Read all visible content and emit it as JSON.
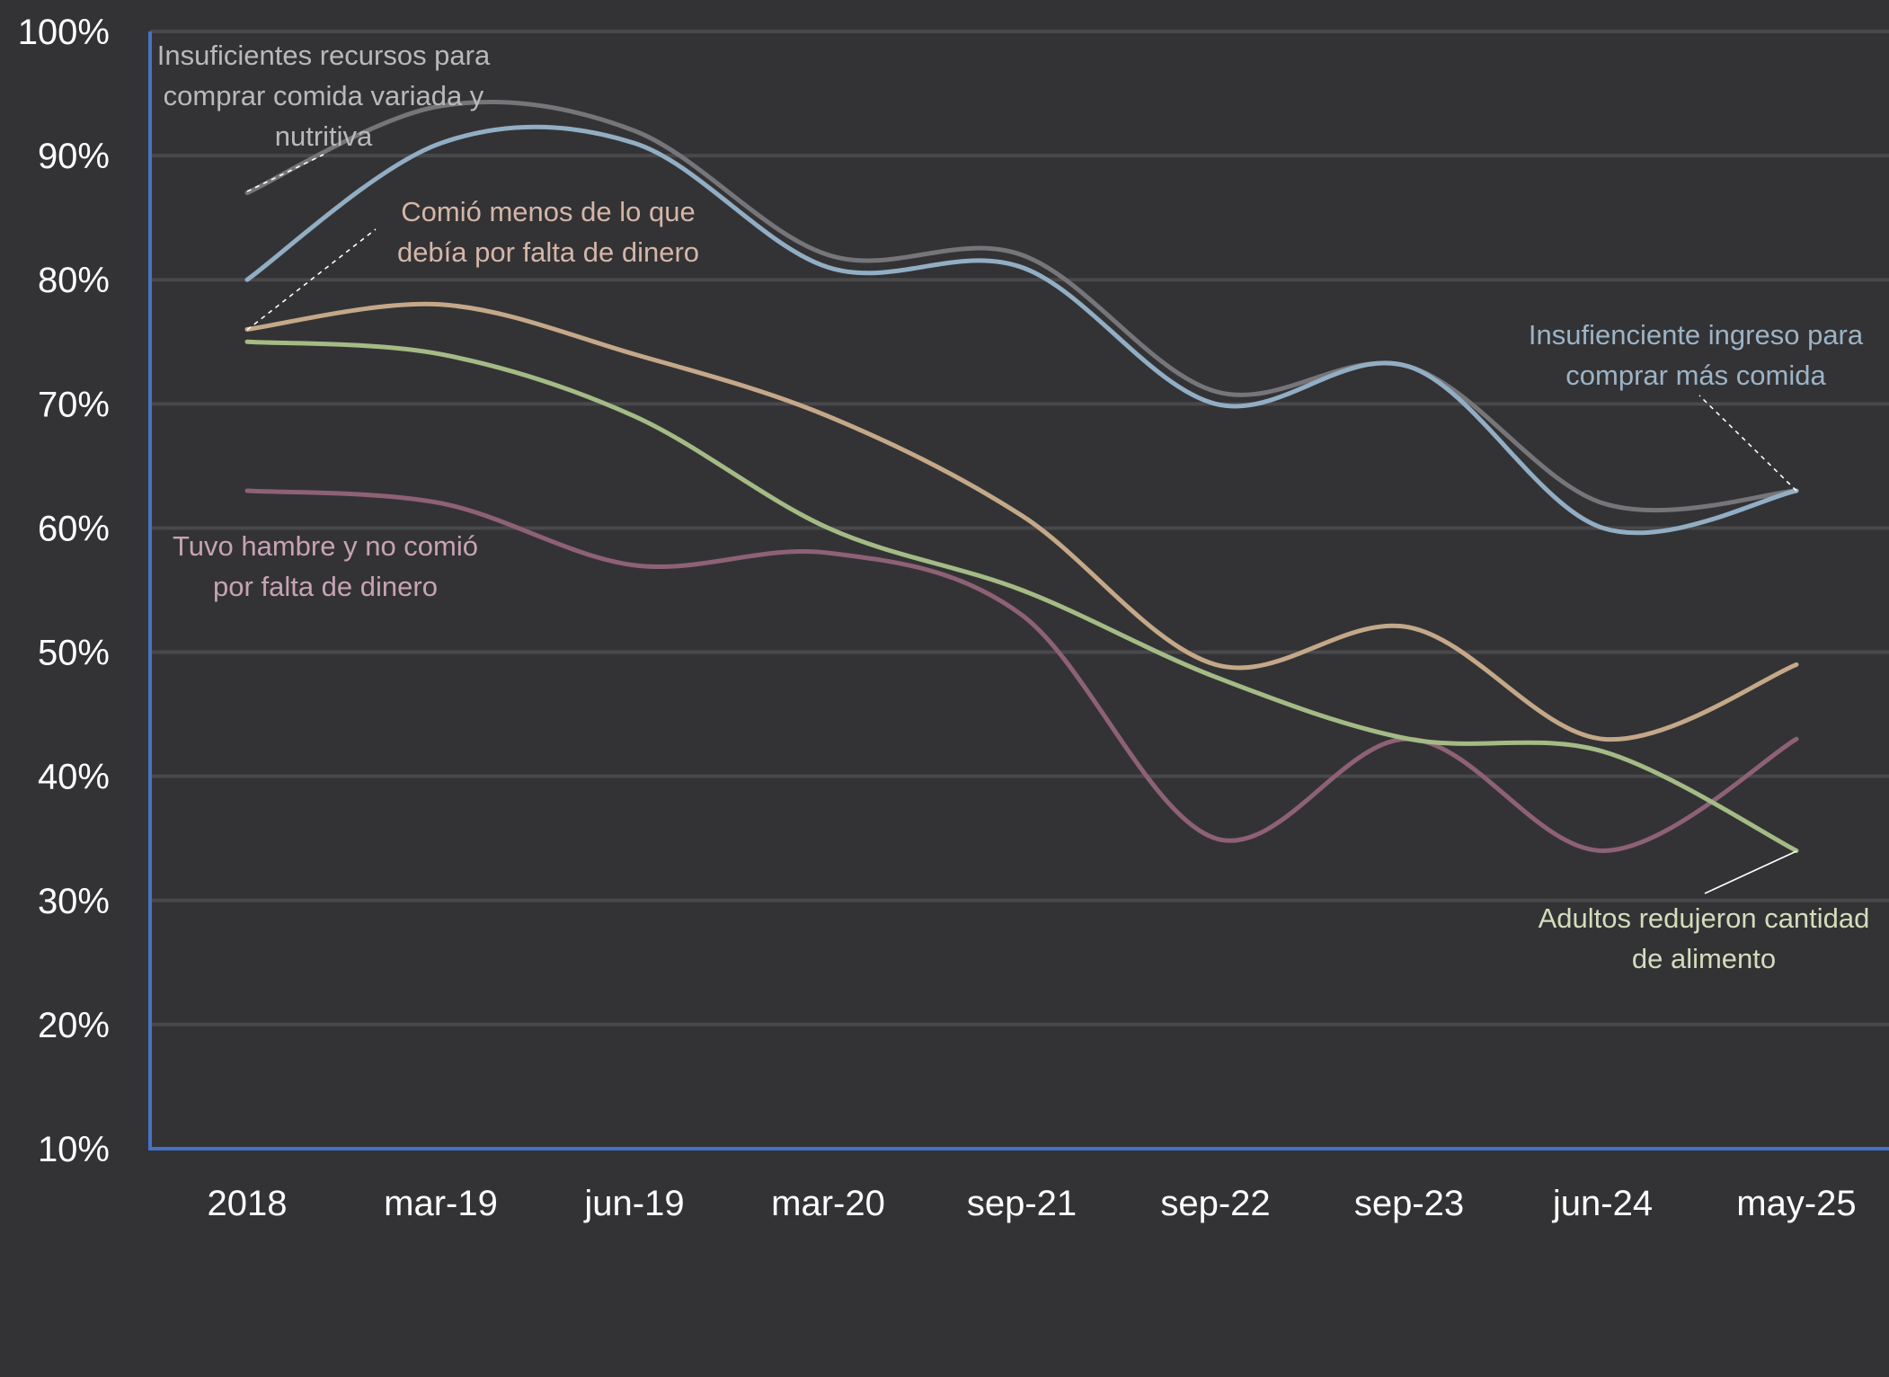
{
  "chart_data": {
    "type": "line",
    "title": "",
    "xlabel": "",
    "ylabel": "",
    "ylim": [
      0.1,
      1.0
    ],
    "y_ticks": [
      "10%",
      "20%",
      "30%",
      "40%",
      "50%",
      "60%",
      "70%",
      "80%",
      "90%",
      "100%"
    ],
    "grid": true,
    "smooth": true,
    "legend": "none (inline annotations)",
    "categories": [
      "2018",
      "mar-19",
      "jun-19",
      "mar-20",
      "sep-21",
      "sep-22",
      "sep-23",
      "jun-24",
      "may-25"
    ],
    "series": [
      {
        "id": "variada",
        "name": "Insuficientes recursos para comprar comida variada y nutritiva",
        "color": "#76757a",
        "values": [
          0.87,
          0.94,
          0.92,
          0.82,
          0.82,
          0.71,
          0.73,
          0.62,
          0.63
        ]
      },
      {
        "id": "ingreso",
        "name": "Insufienciente ingreso para comprar más comida",
        "color": "#92aec4",
        "values": [
          0.8,
          0.91,
          0.91,
          0.81,
          0.81,
          0.7,
          0.73,
          0.6,
          0.63
        ]
      },
      {
        "id": "comio_menos",
        "name": "Comió menos de lo que debía por falta de dinero",
        "color": "#c4a888",
        "values": [
          0.76,
          0.78,
          0.74,
          0.69,
          0.61,
          0.49,
          0.52,
          0.43,
          0.49
        ]
      },
      {
        "id": "adultos",
        "name": "Adultos redujeron cantidad de alimento",
        "color": "#a4bb85",
        "values": [
          0.75,
          0.74,
          0.69,
          0.6,
          0.55,
          0.48,
          0.43,
          0.42,
          0.34
        ]
      },
      {
        "id": "hambre",
        "name": "Tuvo hambre y no comió por falta de dinero",
        "color": "#8e6176",
        "values": [
          0.63,
          0.62,
          0.57,
          0.58,
          0.53,
          0.35,
          0.43,
          0.34,
          0.43
        ]
      }
    ],
    "annotations": [
      {
        "series": "variada",
        "lines": [
          "Insuficientes recursos para",
          "comprar comida variada y",
          "nutritiva"
        ],
        "color": "#b9b9bc",
        "anchor_category": "2018",
        "position": "top-left"
      },
      {
        "series": "comio_menos",
        "lines": [
          "Comió menos de lo que",
          "debía por falta de dinero"
        ],
        "color": "#d4b6a8",
        "anchor_category": "2018",
        "position": "upper-left-center"
      },
      {
        "series": "ingreso",
        "lines": [
          "Insufienciente ingreso para",
          "comprar más comida"
        ],
        "color": "#9db3c6",
        "anchor_category": "may-25",
        "position": "right"
      },
      {
        "series": "adultos",
        "lines": [
          "Adultos redujeron cantidad",
          "de alimento"
        ],
        "color": "#d3dcbc",
        "anchor_category": "may-25",
        "position": "bottom-right"
      },
      {
        "series": "hambre",
        "lines": [
          "Tuvo hambre y no comió",
          "por falta de dinero"
        ],
        "color": "#c7a3b3",
        "anchor_category": "2018",
        "position": "left"
      }
    ],
    "colors": {
      "background": "#333335",
      "axis": "#4472c4",
      "gridline": "#49494b",
      "tick_text": "#ffffff"
    }
  }
}
